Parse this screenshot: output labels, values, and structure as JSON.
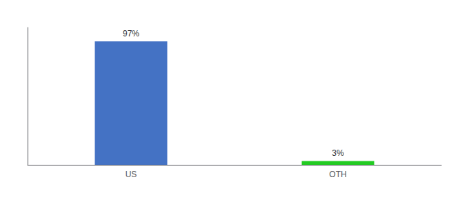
{
  "chart_data": {
    "type": "bar",
    "categories": [
      "US",
      "OTH"
    ],
    "values": [
      97,
      3
    ],
    "colors": [
      "#4472c4",
      "#22cc22"
    ],
    "data_labels": true,
    "value_labels": [
      "97%",
      "3%"
    ],
    "ylim": [
      0,
      108
    ],
    "tick_labels": "x",
    "grid": false
  }
}
